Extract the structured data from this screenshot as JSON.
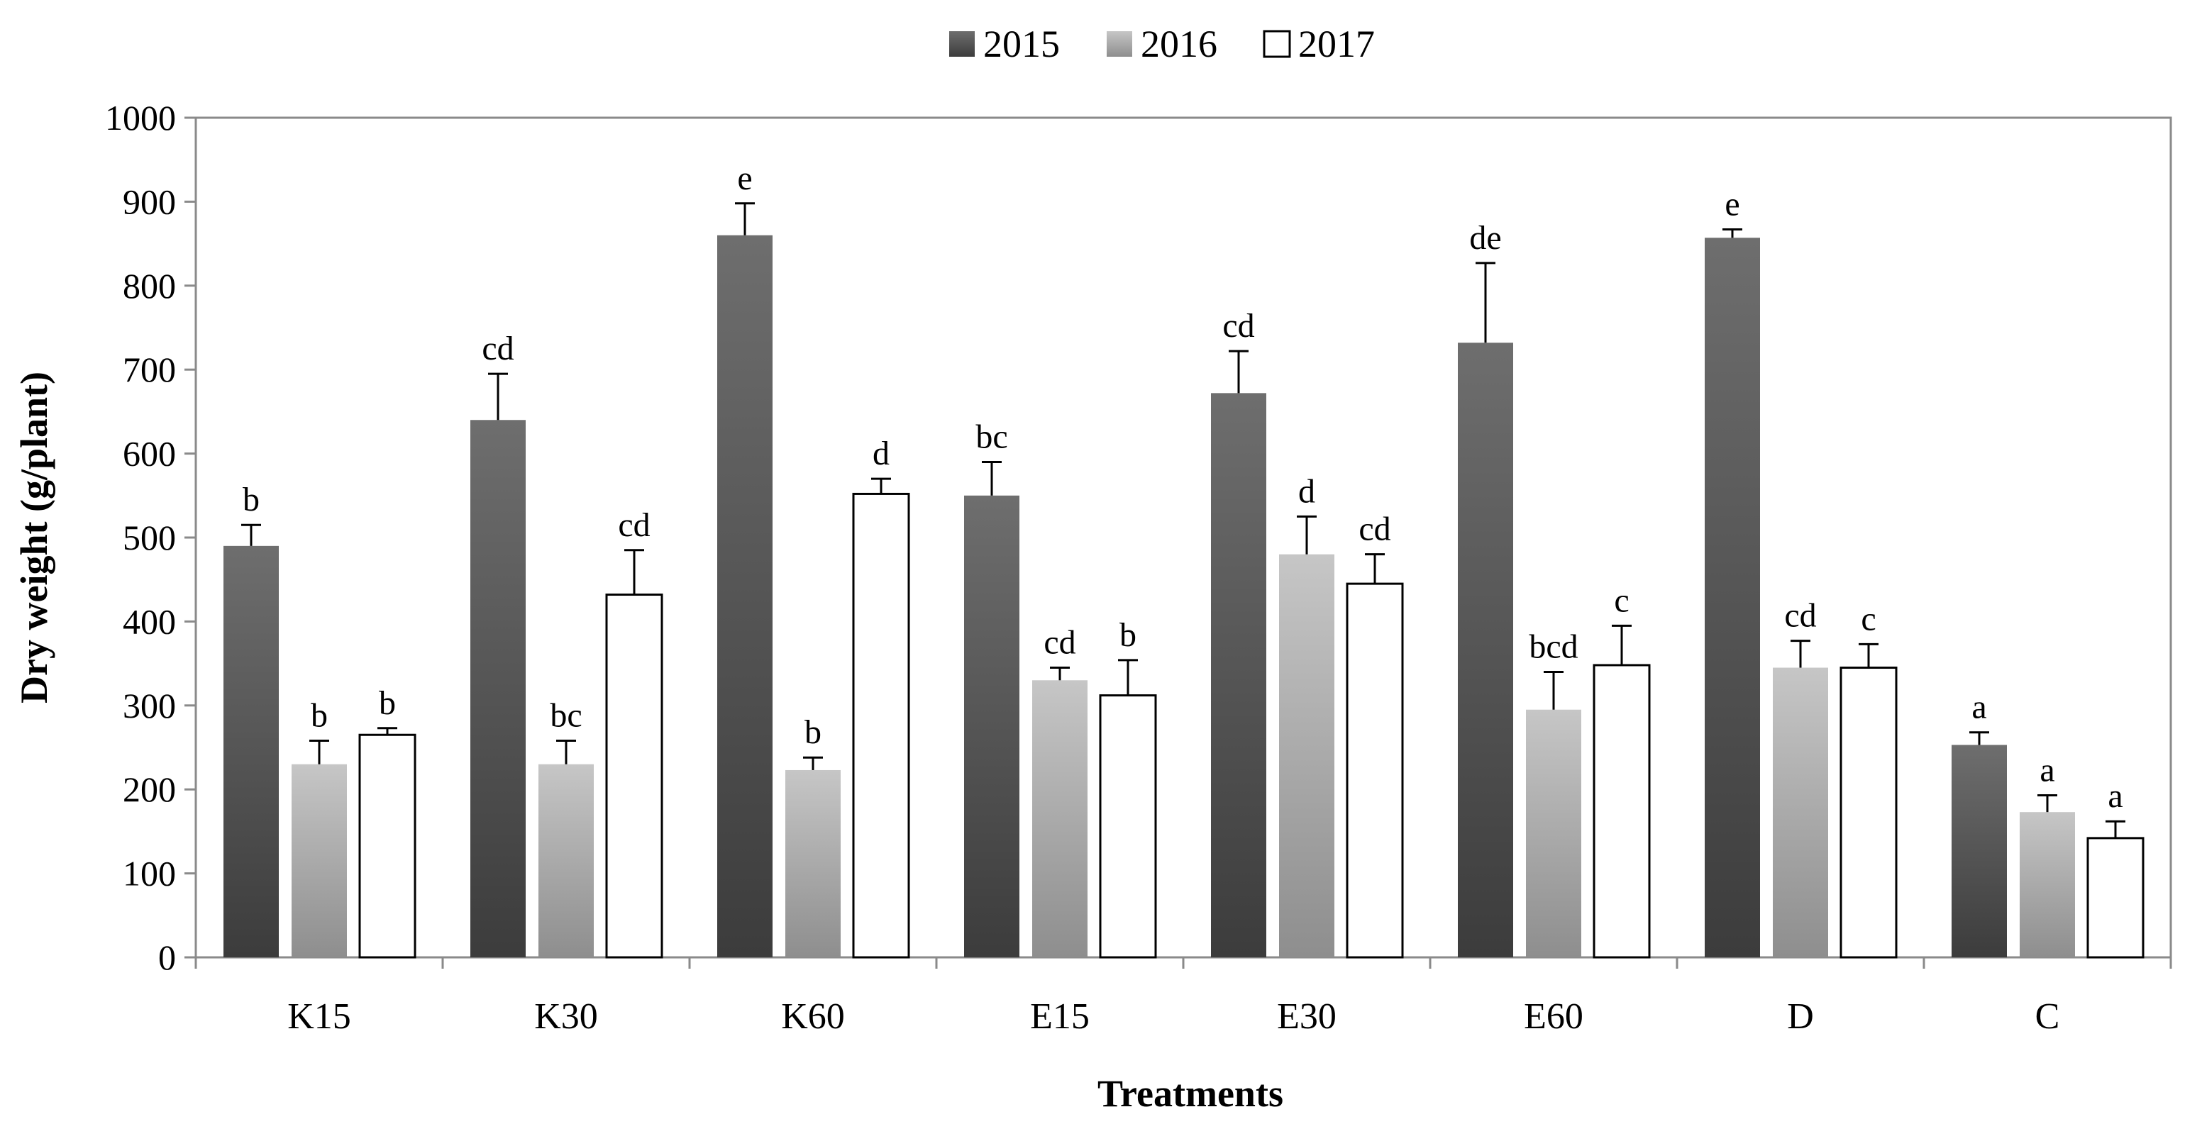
{
  "chart_data": {
    "type": "bar",
    "title": "",
    "xlabel": "Treatments",
    "ylabel": "Dry weight (g/plant)",
    "ylim": [
      0,
      1000
    ],
    "yticks": [
      0,
      100,
      200,
      300,
      400,
      500,
      600,
      700,
      800,
      900,
      1000
    ],
    "grid": false,
    "legend_position": "top-center",
    "categories": [
      "K15",
      "K30",
      "K60",
      "E15",
      "E30",
      "E60",
      "D",
      "C"
    ],
    "series": [
      {
        "name": "2015",
        "color": "#5a5a5a",
        "fill_style": "gradient-dark",
        "values": [
          490,
          640,
          860,
          550,
          672,
          732,
          857,
          253
        ],
        "errors": [
          25,
          55,
          38,
          40,
          50,
          95,
          10,
          15
        ],
        "letters": [
          "b",
          "cd",
          "e",
          "bc",
          "cd",
          "de",
          "e",
          "a"
        ]
      },
      {
        "name": "2016",
        "color": "#b0b0b0",
        "fill_style": "gradient-light",
        "values": [
          230,
          230,
          223,
          330,
          480,
          295,
          345,
          173
        ],
        "errors": [
          28,
          28,
          15,
          15,
          45,
          45,
          32,
          20
        ],
        "letters": [
          "b",
          "bc",
          "b",
          "cd",
          "d",
          "bcd",
          "cd",
          "a"
        ]
      },
      {
        "name": "2017",
        "color": "#ffffff",
        "fill_style": "white-outline",
        "values": [
          265,
          432,
          552,
          312,
          445,
          348,
          345,
          142
        ],
        "errors": [
          8,
          53,
          18,
          42,
          35,
          47,
          28,
          20
        ],
        "letters": [
          "b",
          "cd",
          "d",
          "b",
          "cd",
          "c",
          "c",
          "a"
        ]
      }
    ]
  }
}
